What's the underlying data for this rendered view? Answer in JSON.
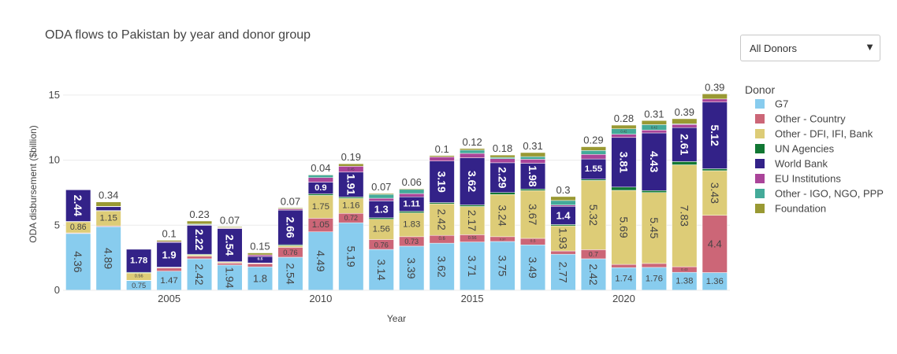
{
  "chart_data": {
    "type": "bar",
    "stacked": true,
    "title": "ODA flows to Pakistan by year and donor group",
    "xlabel": "Year",
    "ylabel": "ODA disbursement ($billion)",
    "ylim": [
      0,
      16.2
    ],
    "grid": true,
    "legend_title": "Donor",
    "legend_position": "right",
    "x": [
      2002,
      2003,
      2004,
      2005,
      2006,
      2007,
      2008,
      2009,
      2010,
      2011,
      2012,
      2013,
      2014,
      2015,
      2016,
      2017,
      2018,
      2019,
      2020,
      2021,
      2022,
      2023
    ],
    "x_tick_labels": [
      "2005",
      "2010",
      "2015",
      "2020"
    ],
    "x_tick_values": [
      2005,
      2010,
      2015,
      2020
    ],
    "y_tick_labels": [
      "0",
      "5",
      "10",
      "15"
    ],
    "y_tick_values": [
      0,
      5,
      10,
      15
    ],
    "series": [
      {
        "name": "G7",
        "color": "#88CCEE",
        "values": [
          4.36,
          4.89,
          0.75,
          1.47,
          2.42,
          1.94,
          1.8,
          2.54,
          4.49,
          5.19,
          3.14,
          3.39,
          3.62,
          3.71,
          3.75,
          3.49,
          2.77,
          2.42,
          1.74,
          1.76,
          1.38,
          1.36
        ]
      },
      {
        "name": "Other - Country",
        "color": "#CC6677",
        "values": [
          0.05,
          0.06,
          0.02,
          0.25,
          0.2,
          0.15,
          0.25,
          0.76,
          1.05,
          0.72,
          0.76,
          0.73,
          0.6,
          0.56,
          0.37,
          0.5,
          0.25,
          0.7,
          0.25,
          0.3,
          0.43,
          4.4
        ]
      },
      {
        "name": "Other - DFI, IFI, Bank",
        "color": "#DDCC77",
        "values": [
          0.86,
          1.15,
          0.56,
          0.03,
          0.1,
          0.08,
          0.02,
          0.12,
          1.75,
          1.16,
          1.56,
          1.83,
          2.42,
          2.17,
          3.24,
          3.67,
          1.93,
          5.32,
          5.69,
          5.45,
          7.83,
          3.43
        ]
      },
      {
        "name": "UN Agencies",
        "color": "#117733",
        "values": [
          0.02,
          0.03,
          0.05,
          0.03,
          0.05,
          0.03,
          0.03,
          0.08,
          0.12,
          0.1,
          0.11,
          0.12,
          0.1,
          0.12,
          0.15,
          0.12,
          0.1,
          0.1,
          0.25,
          0.15,
          0.25,
          0.15
        ]
      },
      {
        "name": "World Bank",
        "color": "#332288",
        "values": [
          2.44,
          0.3,
          1.78,
          1.9,
          2.22,
          2.54,
          0.5,
          2.66,
          0.9,
          1.91,
          1.3,
          1.11,
          3.19,
          3.62,
          2.29,
          1.98,
          1.4,
          1.55,
          3.81,
          4.43,
          2.61,
          5.12
        ]
      },
      {
        "name": "EU Institutions",
        "color": "#AA4499",
        "values": [
          0.02,
          0.02,
          0.02,
          0.06,
          0.05,
          0.05,
          0.12,
          0.1,
          0.35,
          0.45,
          0.2,
          0.25,
          0.32,
          0.34,
          0.31,
          0.31,
          0.1,
          0.35,
          0.25,
          0.22,
          0.24,
          0.24
        ]
      },
      {
        "name": "Other - IGO, NGO, PPP",
        "color": "#44AA99",
        "values": [
          0.0,
          0.0,
          0.0,
          0.0,
          0.05,
          0.02,
          0.0,
          0.0,
          0.2,
          0.0,
          0.3,
          0.32,
          0.0,
          0.25,
          0.1,
          0.2,
          0.35,
          0.3,
          0.42,
          0.42,
          0.05,
          0.0
        ]
      },
      {
        "name": "Foundation",
        "color": "#999933",
        "values": [
          0.0,
          0.34,
          0.0,
          0.1,
          0.23,
          0.07,
          0.15,
          0.07,
          0.04,
          0.19,
          0.07,
          0.06,
          0.1,
          0.12,
          0.18,
          0.31,
          0.3,
          0.29,
          0.28,
          0.31,
          0.39,
          0.39
        ]
      }
    ]
  },
  "controls": {
    "donor_dropdown_value": "All Donors",
    "dropdown_arrow": "▼"
  }
}
